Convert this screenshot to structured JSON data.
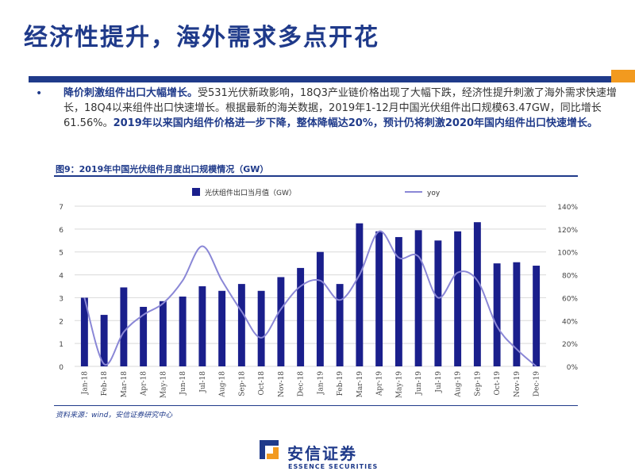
{
  "slide": {
    "title": "经济性提升，海外需求多点开花",
    "bullet_icon": "•",
    "summary": {
      "lead_bold": "降价刺激组件出口大幅增长。",
      "body": "受531光伏新政影响，18Q3产业链价格出现了大幅下跌，经济性提升刺激了海外需求快速增长，18Q4以来组件出口快速增长。根据最新的海关数据，2019年1-12月中国光伏组件出口规模63.47GW，同比增长61.56%。",
      "tail_bold": "2019年以来国内组件价格进一步下降，整体降幅达20%，预计仍将刺激2020年国内组件出口快速增长。"
    },
    "figure_title": "图9：2019年中国光伏组件月度出口规模情况（GW）",
    "source": "资料来源：wind，安信证券研究中心",
    "logo": {
      "name_cn": "安信证券",
      "name_en": "ESSENCE SECURITIES"
    }
  },
  "colors": {
    "brand_blue": "#1f3a8a",
    "bar": "#1a1f8c",
    "line": "#8a87d6",
    "accent_orange": "#f29a1f"
  },
  "chart_data": {
    "type": "bar",
    "categories": [
      "Jan-18",
      "Feb-18",
      "Mar-18",
      "Apr-18",
      "May-18",
      "Jun-18",
      "Jul-18",
      "Aug-18",
      "Sep-18",
      "Oct-18",
      "Nov-18",
      "Dec-18",
      "Jan-19",
      "Feb-19",
      "Mar-19",
      "Apr-19",
      "May-19",
      "Jun-19",
      "Jul-19",
      "Aug-19",
      "Sep-19",
      "Oct-19",
      "Nov-19",
      "Dec-19"
    ],
    "series": [
      {
        "name": "光伏组件出口当月值（GW）",
        "type": "bar",
        "axis": "left",
        "values": [
          3.0,
          2.25,
          3.45,
          2.6,
          2.85,
          3.05,
          3.5,
          3.3,
          3.6,
          3.3,
          3.9,
          4.3,
          5.0,
          3.6,
          6.25,
          5.9,
          5.65,
          5.95,
          5.5,
          5.9,
          6.3,
          4.5,
          4.55,
          4.4
        ]
      },
      {
        "name": "yoy",
        "type": "line",
        "axis": "right",
        "values": [
          60,
          2,
          30,
          45,
          55,
          75,
          105,
          75,
          48,
          25,
          50,
          70,
          75,
          58,
          80,
          118,
          95,
          96,
          60,
          82,
          75,
          35,
          15,
          0
        ]
      }
    ],
    "y_left": {
      "ylim": [
        0,
        7
      ],
      "ticks": [
        "0",
        "1",
        "2",
        "3",
        "4",
        "5",
        "6",
        "7"
      ]
    },
    "y_right": {
      "ylim": [
        0,
        140
      ],
      "ticks": [
        "0%",
        "20%",
        "40%",
        "60%",
        "80%",
        "100%",
        "120%",
        "140%"
      ]
    },
    "grid": true,
    "legend": "top"
  }
}
